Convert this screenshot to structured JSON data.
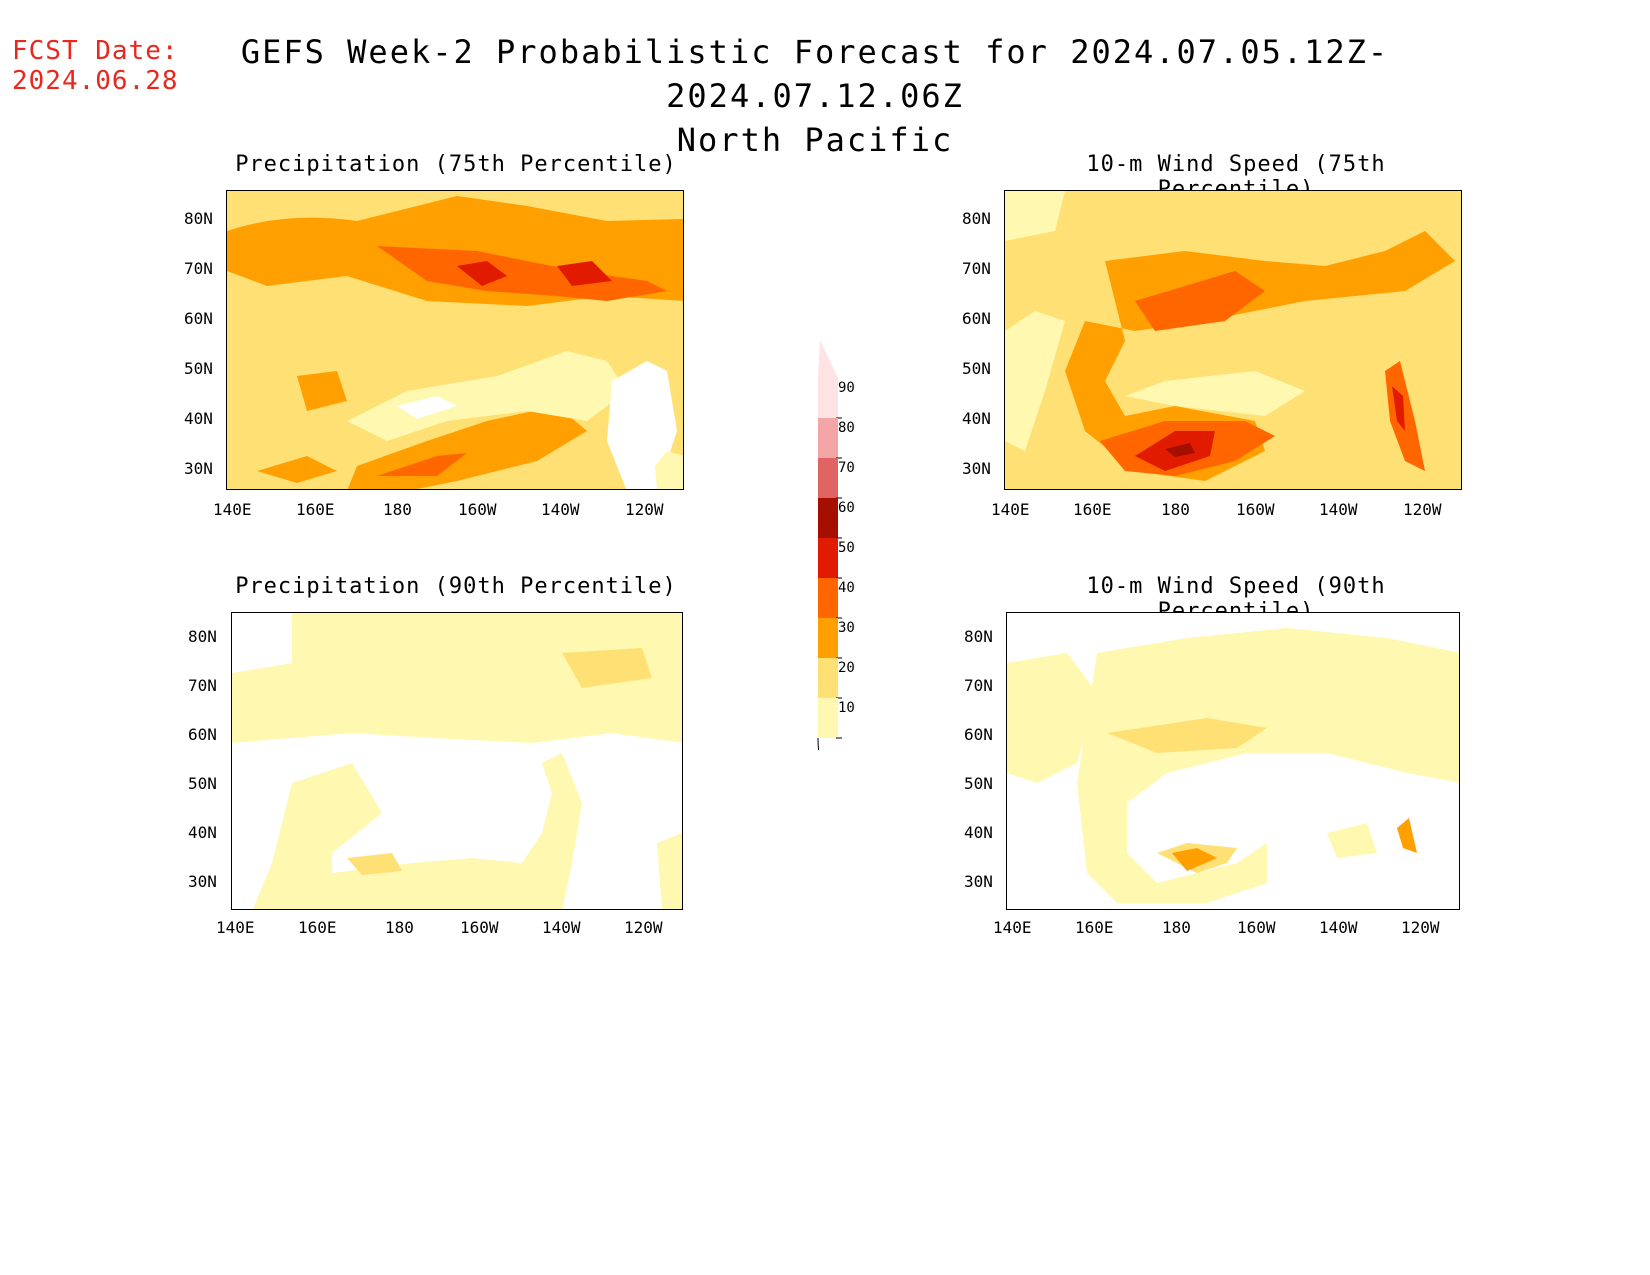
{
  "header": {
    "fcst_label": "FCST Date:",
    "fcst_date": "2024.06.28",
    "title_line1": "GEFS Week-2 Probabilistic Forecast for 2024.07.05.12Z-2024.07.12.06Z",
    "title_line2": "North Pacific"
  },
  "axes": {
    "lon_labels": [
      "140E",
      "160E",
      "180",
      "160W",
      "140W",
      "120W"
    ],
    "lat_labels": [
      "80N",
      "70N",
      "60N",
      "50N",
      "40N",
      "30N"
    ]
  },
  "panels": [
    {
      "id": "precip75",
      "title": "Precipitation (75th Percentile)"
    },
    {
      "id": "wind75",
      "title": "10-m Wind Speed (75th Percentile)"
    },
    {
      "id": "precip90",
      "title": "Precipitation (90th Percentile)"
    },
    {
      "id": "wind90",
      "title": "10-m Wind Speed (90th Percentile)"
    }
  ],
  "colorbar": {
    "labels": [
      "90",
      "80",
      "70",
      "60",
      "50",
      "40",
      "30",
      "20",
      "10"
    ],
    "colors": [
      "#fde3e3",
      "#f4a5a5",
      "#e06464",
      "#a50f00",
      "#e01b00",
      "#ff6600",
      "#ff9f00",
      "#ffe075",
      "#fff8b0"
    ]
  },
  "legend_colors": {
    "c10": "#fff8b0",
    "c20": "#ffe075",
    "c30": "#ff9f00",
    "c40": "#ff6600",
    "c50": "#e01b00",
    "c60": "#a50f00"
  }
}
